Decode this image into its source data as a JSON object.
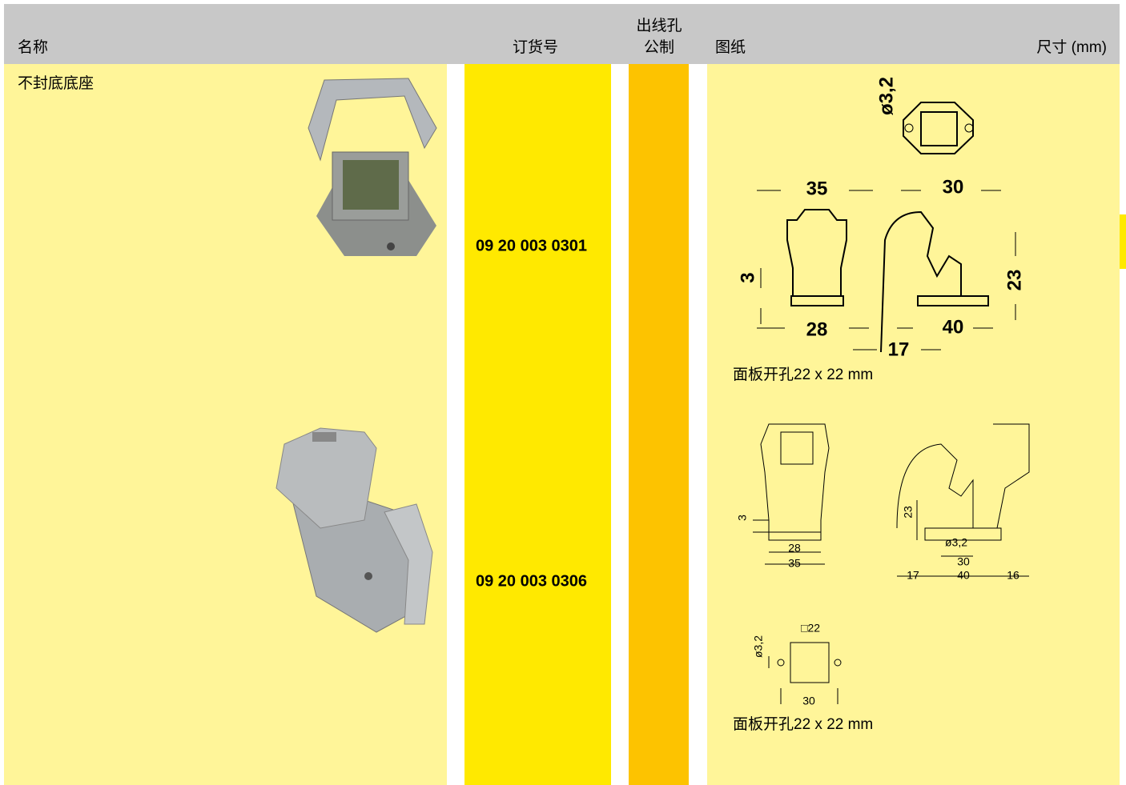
{
  "header": {
    "name": "名称",
    "order_no": "订货号",
    "cable_entry": [
      "出线孔",
      "公制"
    ],
    "drawing": "图纸",
    "dimensions": "尺寸 (mm)"
  },
  "section_title": "不封底底座",
  "rows": [
    {
      "order_no": "09 20 003 0301",
      "drawing_labels": [
        "ø3,2",
        "35",
        "30",
        "3",
        "23",
        "28",
        "17",
        "40"
      ],
      "caption": "面板开孔22 x 22 mm"
    },
    {
      "order_no": "09 20 003 0306",
      "drawing_labels": [
        "3",
        "23",
        "28",
        "35",
        "ø3,2",
        "30",
        "17",
        "40",
        "16",
        "ø3,2",
        "□22",
        "30"
      ],
      "caption": "面板开孔22 x 22 mm"
    }
  ]
}
